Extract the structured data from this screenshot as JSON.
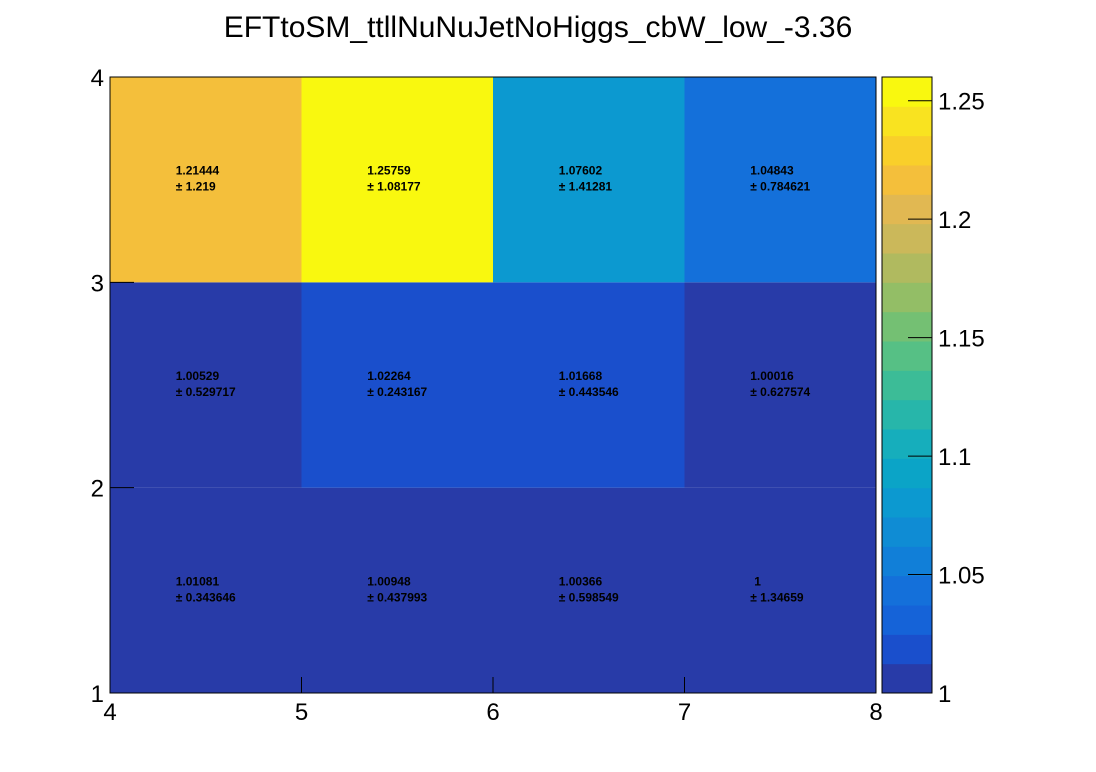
{
  "chart_data": {
    "type": "heatmap",
    "title": "EFTtoSM_ttllNuNuJetNoHiggs_cbW_low_-3.36",
    "xlabel": "",
    "ylabel": "",
    "x_edges": [
      4,
      5,
      6,
      7,
      8
    ],
    "y_edges": [
      1,
      2,
      3,
      4
    ],
    "xlim": [
      4,
      8
    ],
    "ylim": [
      1,
      4
    ],
    "x_tick_labels": [
      "4",
      "5",
      "6",
      "7",
      "8"
    ],
    "y_tick_labels": [
      "1",
      "2",
      "3",
      "4"
    ],
    "z_range": [
      1.0,
      1.26
    ],
    "colorbar_ticks": [
      1.0,
      1.05,
      1.1,
      1.15,
      1.2,
      1.25
    ],
    "colorbar_tick_labels": [
      "1",
      "1.05",
      "1.1",
      "1.15",
      "1.2",
      "1.25"
    ],
    "cells": [
      {
        "x": 4.5,
        "y": 1.5,
        "value": 1.01081,
        "value_label": "1.01081",
        "error_label": "± 0.343646"
      },
      {
        "x": 5.5,
        "y": 1.5,
        "value": 1.00948,
        "value_label": "1.00948",
        "error_label": "± 0.437993"
      },
      {
        "x": 6.5,
        "y": 1.5,
        "value": 1.00366,
        "value_label": "1.00366",
        "error_label": "± 0.598549"
      },
      {
        "x": 7.5,
        "y": 1.5,
        "value": 1.0,
        "value_label": "1",
        "error_label": "± 1.34659"
      },
      {
        "x": 4.5,
        "y": 2.5,
        "value": 1.00529,
        "value_label": "1.00529",
        "error_label": "± 0.529717"
      },
      {
        "x": 5.5,
        "y": 2.5,
        "value": 1.02264,
        "value_label": "1.02264",
        "error_label": "± 0.243167"
      },
      {
        "x": 6.5,
        "y": 2.5,
        "value": 1.01668,
        "value_label": "1.01668",
        "error_label": "± 0.443546"
      },
      {
        "x": 7.5,
        "y": 2.5,
        "value": 1.00016,
        "value_label": "1.00016",
        "error_label": "± 0.627574"
      },
      {
        "x": 4.5,
        "y": 3.5,
        "value": 1.21444,
        "value_label": "1.21444",
        "error_label": "± 1.219"
      },
      {
        "x": 5.5,
        "y": 3.5,
        "value": 1.25759,
        "value_label": "1.25759",
        "error_label": "± 1.08177"
      },
      {
        "x": 6.5,
        "y": 3.5,
        "value": 1.07602,
        "value_label": "1.07602",
        "error_label": "± 1.41281"
      },
      {
        "x": 7.5,
        "y": 3.5,
        "value": 1.04843,
        "value_label": "1.04843",
        "error_label": "± 0.784621"
      }
    ],
    "palette": [
      "#283ba8",
      "#1a4fcc",
      "#1563d8",
      "#1470da",
      "#117fd8",
      "#0f8cd4",
      "#0c99d0",
      "#0ba4c7",
      "#16aebc",
      "#27b6aa",
      "#3cbc97",
      "#56c085",
      "#74c073",
      "#93be66",
      "#b0ba5f",
      "#cbb85a",
      "#e1b852",
      "#f4bf3b",
      "#f9cf2a",
      "#f9e320",
      "#f9f80f"
    ],
    "grid": false,
    "legend": "none"
  }
}
